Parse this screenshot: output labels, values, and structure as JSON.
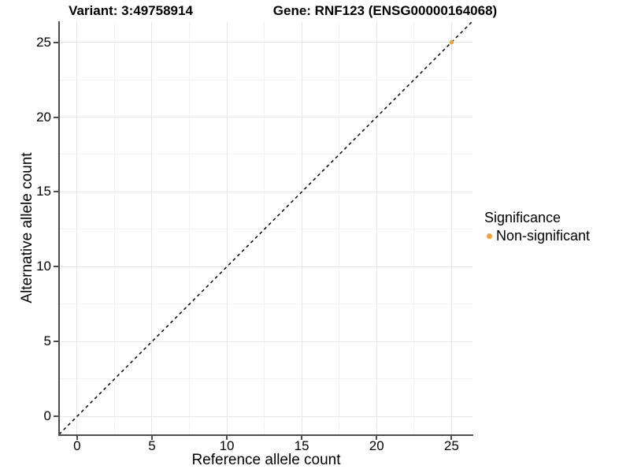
{
  "chart_data": {
    "type": "scatter",
    "titles": [
      "Variant: 3:49758914",
      "Gene: RNF123 (ENSG00000164068)"
    ],
    "xlabel": "Reference allele count",
    "ylabel": "Alternative allele count",
    "x_ticks": [
      0,
      5,
      10,
      15,
      20,
      25
    ],
    "y_ticks": [
      0,
      5,
      10,
      15,
      20,
      25
    ],
    "x_minor_ticks": [
      2.5,
      7.5,
      12.5,
      17.5,
      22.5
    ],
    "y_minor_ticks": [
      2.5,
      7.5,
      12.5,
      17.5,
      22.5
    ],
    "x_domain": [
      -1.2,
      26.4
    ],
    "y_domain": [
      -1.2,
      26.4
    ],
    "grid": true,
    "identity_line": {
      "style": "dashed",
      "equation": "y = x",
      "from": -1.2,
      "to": 26.4
    },
    "points": [
      {
        "x": 25,
        "y": 25,
        "series": "Non-significant"
      }
    ],
    "legend": {
      "title": "Significance",
      "position": "right",
      "items": [
        {
          "label": "Non-significant",
          "color": "#F9A232"
        }
      ]
    },
    "colors": {
      "point": "#F9A232",
      "grid_major": "#E6E6E6",
      "grid_minor": "#F2F2F2",
      "axis_line": "#4D4D4D",
      "dashed_line": "#000000",
      "text": "#000000"
    }
  }
}
